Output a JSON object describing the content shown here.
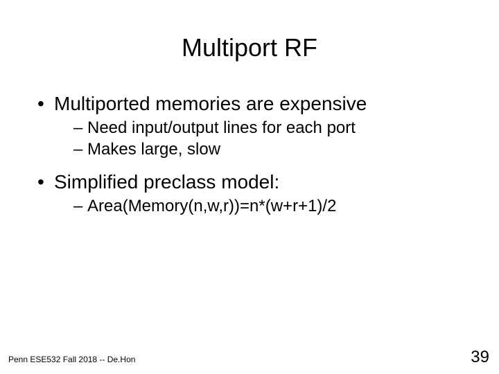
{
  "slide": {
    "title": "Multiport RF",
    "bullets": [
      {
        "text": "Multiported memories are expensive",
        "sub": [
          "Need input/output lines for each port",
          "Makes large, slow"
        ]
      },
      {
        "text": "Simplified preclass model:",
        "sub": [
          "Area(Memory(n,w,r))=n*(w+r+1)/2"
        ]
      }
    ],
    "footer_left": "Penn ESE532 Fall 2018 -- De.Hon",
    "page_number": "39"
  },
  "style": {
    "background_color": "#ffffff",
    "text_color": "#000000",
    "title_fontsize": 36,
    "body_fontsize": 28,
    "sub_fontsize": 24,
    "footer_fontsize": 12,
    "pagenum_fontsize": 24,
    "font_family": "Arial"
  }
}
